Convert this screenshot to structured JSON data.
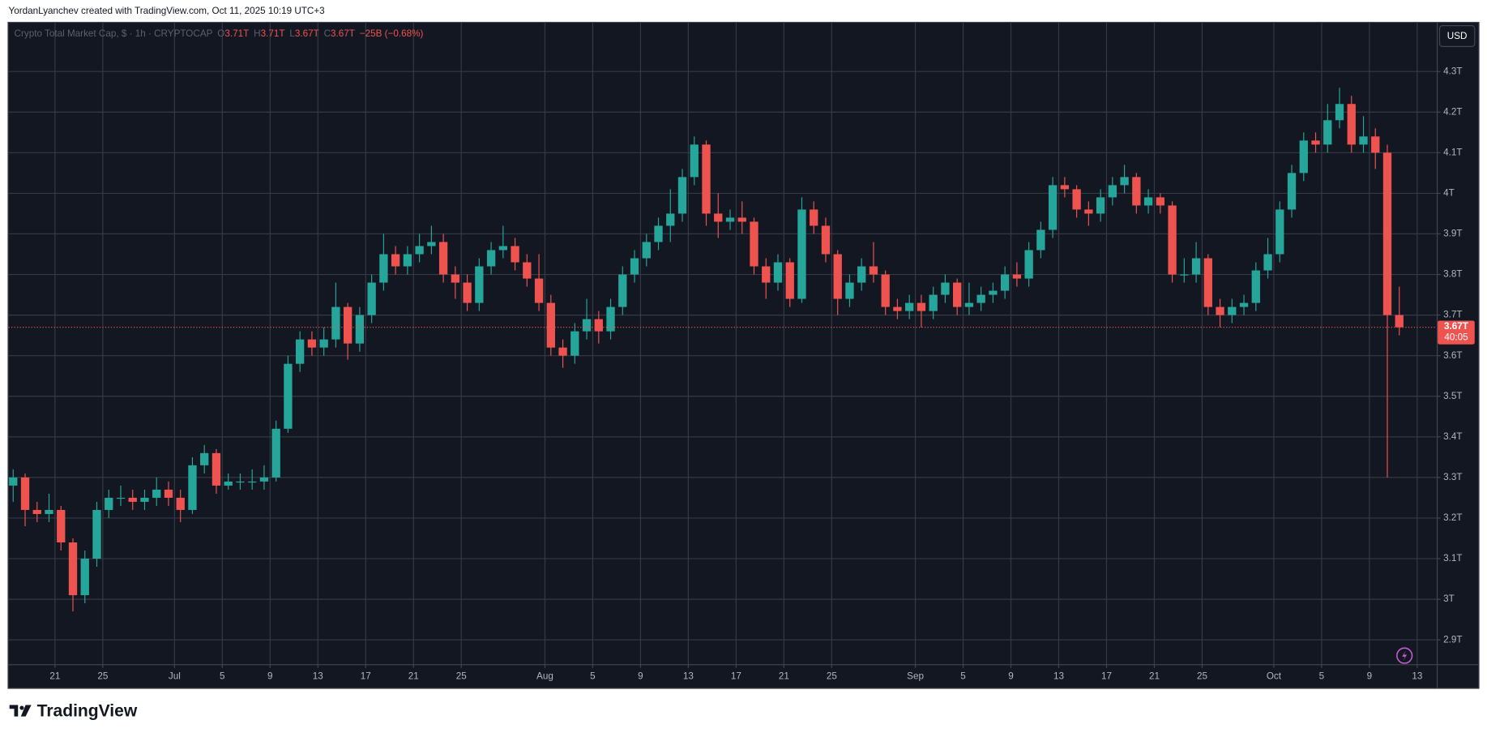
{
  "header": "YordanLyanchev created with TradingView.com, Oct 11, 2025 10:19 UTC+3",
  "footer": "TradingView",
  "chart_data": {
    "type": "candlestick",
    "legend": {
      "symbol": "Crypto Total Market Cap, $ · 1h · CRYPTOCAP",
      "ohlc": [
        {
          "key": "O",
          "value": "3.71T"
        },
        {
          "key": "H",
          "value": "3.71T"
        },
        {
          "key": "L",
          "value": "3.67T"
        },
        {
          "key": "C",
          "value": "3.67T"
        }
      ],
      "change": "−25B (−0.68%)"
    },
    "currency": "USD",
    "up_color": "#26a69a",
    "down_color": "#ef5350",
    "grid": true,
    "categories": [
      "06-17",
      "06-18",
      "06-19",
      "06-20",
      "06-21",
      "06-22",
      "06-23",
      "06-24",
      "06-25",
      "06-26",
      "06-27",
      "06-28",
      "06-29",
      "06-30",
      "07-01",
      "07-02",
      "07-03",
      "07-04",
      "07-05",
      "07-06",
      "07-07",
      "07-08",
      "07-09",
      "07-10",
      "07-11",
      "07-12",
      "07-13",
      "07-14",
      "07-15",
      "07-16",
      "07-17",
      "07-18",
      "07-19",
      "07-20",
      "07-21",
      "07-22",
      "07-23",
      "07-24",
      "07-25",
      "07-26",
      "07-27",
      "07-28",
      "07-29",
      "07-30",
      "07-31",
      "08-01",
      "08-02",
      "08-03",
      "08-04",
      "08-05",
      "08-06",
      "08-07",
      "08-08",
      "08-09",
      "08-10",
      "08-11",
      "08-12",
      "08-13",
      "08-14",
      "08-15",
      "08-16",
      "08-17",
      "08-18",
      "08-19",
      "08-20",
      "08-21",
      "08-22",
      "08-23",
      "08-24",
      "08-25",
      "08-26",
      "08-27",
      "08-28",
      "08-29",
      "08-30",
      "08-31",
      "09-01",
      "09-02",
      "09-03",
      "09-04",
      "09-05",
      "09-06",
      "09-07",
      "09-08",
      "09-09",
      "09-10",
      "09-11",
      "09-12",
      "09-13",
      "09-14",
      "09-15",
      "09-16",
      "09-17",
      "09-18",
      "09-19",
      "09-20",
      "09-21",
      "09-22",
      "09-23",
      "09-24",
      "09-25",
      "09-26",
      "09-27",
      "09-28",
      "09-29",
      "09-30",
      "10-01",
      "10-02",
      "10-03",
      "10-04",
      "10-05",
      "10-06",
      "10-07",
      "10-08",
      "10-09",
      "10-10",
      "10-11"
    ],
    "open": [
      3.28,
      3.3,
      3.22,
      3.21,
      3.22,
      3.14,
      3.01,
      3.1,
      3.22,
      3.25,
      3.25,
      3.24,
      3.25,
      3.27,
      3.25,
      3.22,
      3.33,
      3.36,
      3.28,
      3.29,
      3.29,
      3.29,
      3.3,
      3.42,
      3.58,
      3.64,
      3.62,
      3.64,
      3.72,
      3.63,
      3.7,
      3.78,
      3.85,
      3.82,
      3.85,
      3.87,
      3.88,
      3.8,
      3.78,
      3.73,
      3.82,
      3.86,
      3.87,
      3.83,
      3.79,
      3.73,
      3.62,
      3.6,
      3.66,
      3.69,
      3.66,
      3.72,
      3.8,
      3.84,
      3.88,
      3.92,
      3.95,
      4.04,
      4.12,
      3.95,
      3.93,
      3.94,
      3.93,
      3.82,
      3.78,
      3.83,
      3.74,
      3.96,
      3.92,
      3.85,
      3.74,
      3.78,
      3.82,
      3.8,
      3.72,
      3.71,
      3.73,
      3.71,
      3.75,
      3.78,
      3.72,
      3.73,
      3.75,
      3.76,
      3.8,
      3.79,
      3.86,
      3.91,
      4.02,
      4.01,
      3.96,
      3.95,
      3.99,
      4.02,
      4.04,
      3.97,
      3.99,
      3.97,
      3.8,
      3.8,
      3.84,
      3.72,
      3.7,
      3.72,
      3.73,
      3.81,
      3.85,
      3.96,
      4.05,
      4.13,
      4.12,
      4.18,
      4.22,
      4.12,
      4.14,
      4.1,
      3.7
    ],
    "high": [
      3.32,
      3.31,
      3.24,
      3.26,
      3.23,
      3.15,
      3.12,
      3.24,
      3.27,
      3.28,
      3.27,
      3.27,
      3.3,
      3.29,
      3.27,
      3.35,
      3.38,
      3.37,
      3.31,
      3.31,
      3.32,
      3.33,
      3.44,
      3.6,
      3.66,
      3.66,
      3.67,
      3.78,
      3.73,
      3.72,
      3.8,
      3.9,
      3.87,
      3.87,
      3.9,
      3.92,
      3.9,
      3.82,
      3.8,
      3.84,
      3.88,
      3.92,
      3.89,
      3.85,
      3.85,
      3.75,
      3.64,
      3.68,
      3.74,
      3.71,
      3.74,
      3.82,
      3.86,
      3.9,
      3.94,
      4.01,
      4.06,
      4.14,
      4.13,
      4.0,
      3.96,
      3.98,
      3.94,
      3.84,
      3.85,
      3.84,
      3.99,
      3.98,
      3.94,
      3.86,
      3.8,
      3.84,
      3.88,
      3.81,
      3.74,
      3.75,
      3.75,
      3.77,
      3.8,
      3.79,
      3.78,
      3.77,
      3.78,
      3.82,
      3.83,
      3.88,
      3.93,
      4.04,
      4.04,
      4.02,
      3.98,
      4.01,
      4.04,
      4.07,
      4.05,
      4.01,
      4.0,
      3.98,
      3.84,
      3.88,
      3.85,
      3.74,
      3.74,
      3.75,
      3.83,
      3.89,
      3.98,
      4.07,
      4.15,
      4.15,
      4.22,
      4.26,
      4.24,
      4.19,
      4.16,
      4.12,
      3.77
    ],
    "low": [
      3.24,
      3.18,
      3.19,
      3.19,
      3.12,
      2.97,
      2.99,
      3.08,
      3.2,
      3.23,
      3.22,
      3.22,
      3.23,
      3.23,
      3.19,
      3.21,
      3.31,
      3.26,
      3.27,
      3.27,
      3.27,
      3.27,
      3.29,
      3.41,
      3.56,
      3.6,
      3.6,
      3.62,
      3.59,
      3.61,
      3.68,
      3.76,
      3.8,
      3.8,
      3.83,
      3.85,
      3.78,
      3.74,
      3.71,
      3.71,
      3.8,
      3.84,
      3.81,
      3.77,
      3.71,
      3.6,
      3.57,
      3.58,
      3.64,
      3.63,
      3.64,
      3.7,
      3.78,
      3.82,
      3.86,
      3.88,
      3.93,
      4.02,
      3.92,
      3.89,
      3.91,
      3.9,
      3.8,
      3.74,
      3.76,
      3.72,
      3.73,
      3.9,
      3.83,
      3.7,
      3.72,
      3.76,
      3.78,
      3.7,
      3.69,
      3.69,
      3.67,
      3.69,
      3.73,
      3.7,
      3.7,
      3.71,
      3.73,
      3.74,
      3.77,
      3.77,
      3.84,
      3.89,
      3.99,
      3.94,
      3.92,
      3.93,
      3.97,
      4.0,
      3.95,
      3.95,
      3.95,
      3.78,
      3.78,
      3.78,
      3.7,
      3.67,
      3.68,
      3.7,
      3.71,
      3.79,
      3.83,
      3.94,
      4.03,
      4.1,
      4.1,
      4.16,
      4.1,
      4.1,
      4.06,
      3.3,
      3.65
    ],
    "close": [
      3.3,
      3.22,
      3.21,
      3.22,
      3.14,
      3.01,
      3.1,
      3.22,
      3.25,
      3.25,
      3.24,
      3.25,
      3.27,
      3.25,
      3.22,
      3.33,
      3.36,
      3.28,
      3.29,
      3.29,
      3.29,
      3.3,
      3.42,
      3.58,
      3.64,
      3.62,
      3.64,
      3.72,
      3.63,
      3.7,
      3.78,
      3.85,
      3.82,
      3.85,
      3.87,
      3.88,
      3.8,
      3.78,
      3.73,
      3.82,
      3.86,
      3.87,
      3.83,
      3.79,
      3.73,
      3.62,
      3.6,
      3.66,
      3.69,
      3.66,
      3.72,
      3.8,
      3.84,
      3.88,
      3.92,
      3.95,
      4.04,
      4.12,
      3.95,
      3.93,
      3.94,
      3.93,
      3.82,
      3.78,
      3.83,
      3.74,
      3.96,
      3.92,
      3.85,
      3.74,
      3.78,
      3.82,
      3.8,
      3.72,
      3.71,
      3.73,
      3.71,
      3.75,
      3.78,
      3.72,
      3.73,
      3.75,
      3.76,
      3.8,
      3.79,
      3.86,
      3.91,
      4.02,
      4.01,
      3.96,
      3.95,
      3.99,
      4.02,
      4.04,
      3.97,
      3.99,
      3.97,
      3.8,
      3.8,
      3.84,
      3.72,
      3.7,
      3.72,
      3.73,
      3.81,
      3.85,
      3.96,
      4.05,
      4.13,
      4.12,
      4.18,
      4.22,
      4.12,
      4.14,
      4.1,
      3.7,
      3.67
    ],
    "ylim": [
      2.84,
      4.42
    ],
    "yticks": [
      {
        "value": 2.9,
        "label": "2.9T"
      },
      {
        "value": 3,
        "label": "3T"
      },
      {
        "value": 3.1,
        "label": "3.1T"
      },
      {
        "value": 3.2,
        "label": "3.2T"
      },
      {
        "value": 3.3,
        "label": "3.3T"
      },
      {
        "value": 3.4,
        "label": "3.4T"
      },
      {
        "value": 3.5,
        "label": "3.5T"
      },
      {
        "value": 3.6,
        "label": "3.6T"
      },
      {
        "value": 3.7,
        "label": "3.7T"
      },
      {
        "value": 3.8,
        "label": "3.8T"
      },
      {
        "value": 3.9,
        "label": "3.9T"
      },
      {
        "value": 4,
        "label": "4T"
      },
      {
        "value": 4.1,
        "label": "4.1T"
      },
      {
        "value": 4.2,
        "label": "4.2T"
      },
      {
        "value": 4.3,
        "label": "4.3T"
      }
    ],
    "xticks": [
      {
        "value": "06-21",
        "label": "21"
      },
      {
        "value": "06-25",
        "label": "25"
      },
      {
        "value": "07-01",
        "label": "Jul"
      },
      {
        "value": "07-05",
        "label": "5"
      },
      {
        "value": "07-09",
        "label": "9"
      },
      {
        "value": "07-13",
        "label": "13"
      },
      {
        "value": "07-17",
        "label": "17"
      },
      {
        "value": "07-21",
        "label": "21"
      },
      {
        "value": "07-25",
        "label": "25"
      },
      {
        "value": "08-01",
        "label": "Aug"
      },
      {
        "value": "08-05",
        "label": "5"
      },
      {
        "value": "08-09",
        "label": "9"
      },
      {
        "value": "08-13",
        "label": "13"
      },
      {
        "value": "08-17",
        "label": "17"
      },
      {
        "value": "08-21",
        "label": "21"
      },
      {
        "value": "08-25",
        "label": "25"
      },
      {
        "value": "09-01",
        "label": "Sep"
      },
      {
        "value": "09-05",
        "label": "5"
      },
      {
        "value": "09-09",
        "label": "9"
      },
      {
        "value": "09-13",
        "label": "13"
      },
      {
        "value": "09-17",
        "label": "17"
      },
      {
        "value": "09-21",
        "label": "21"
      },
      {
        "value": "09-25",
        "label": "25"
      },
      {
        "value": "10-01",
        "label": "Oct"
      },
      {
        "value": "10-05",
        "label": "5"
      },
      {
        "value": "10-09",
        "label": "9"
      },
      {
        "value": "10-13",
        "label": "13"
      }
    ],
    "last_price": {
      "value": 3.67,
      "label": "3.67T",
      "countdown": "40:05"
    }
  }
}
